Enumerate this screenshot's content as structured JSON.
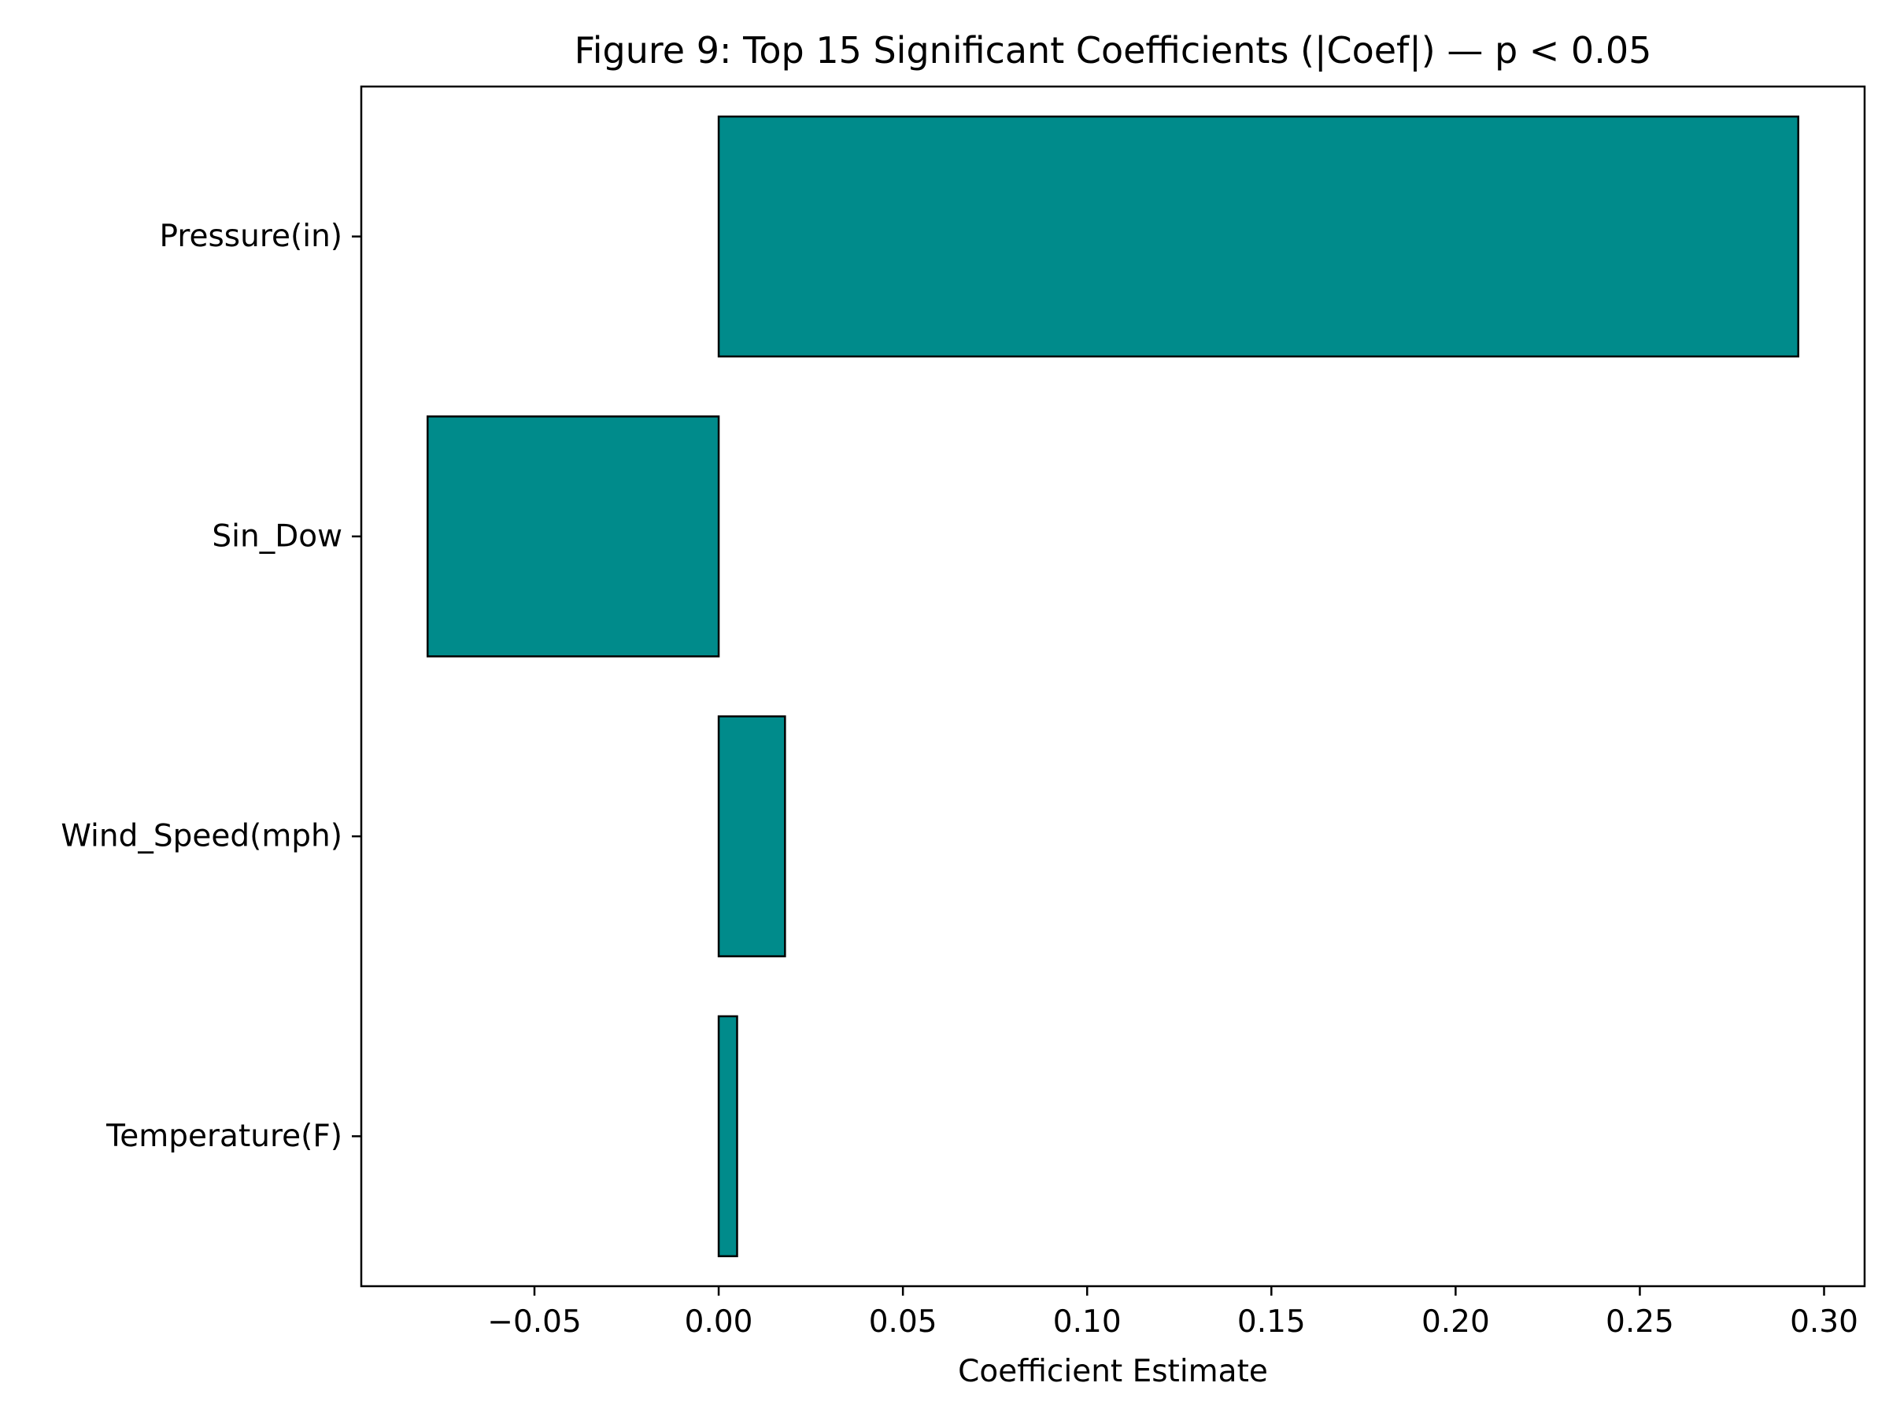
{
  "chart_data": {
    "type": "bar",
    "orientation": "horizontal",
    "title": "Figure 9: Top 15 Significant Coefficients (|Coef|) — p < 0.05",
    "xlabel": "Coefficient Estimate",
    "ylabel": "",
    "categories": [
      "Pressure(in)",
      "Sin_Dow",
      "Wind_Speed(mph)",
      "Temperature(F)"
    ],
    "values": [
      0.293,
      -0.079,
      0.018,
      0.005
    ],
    "xlim": [
      -0.097,
      0.311
    ],
    "xticks": [
      -0.05,
      0.0,
      0.05,
      0.1,
      0.15,
      0.2,
      0.25,
      0.3
    ],
    "xtick_labels": [
      "−0.05",
      "0.00",
      "0.05",
      "0.10",
      "0.15",
      "0.20",
      "0.25",
      "0.30"
    ],
    "grid": false,
    "legend": "none",
    "bar_color": "#008b8b",
    "bar_edge_color": "#000000"
  }
}
